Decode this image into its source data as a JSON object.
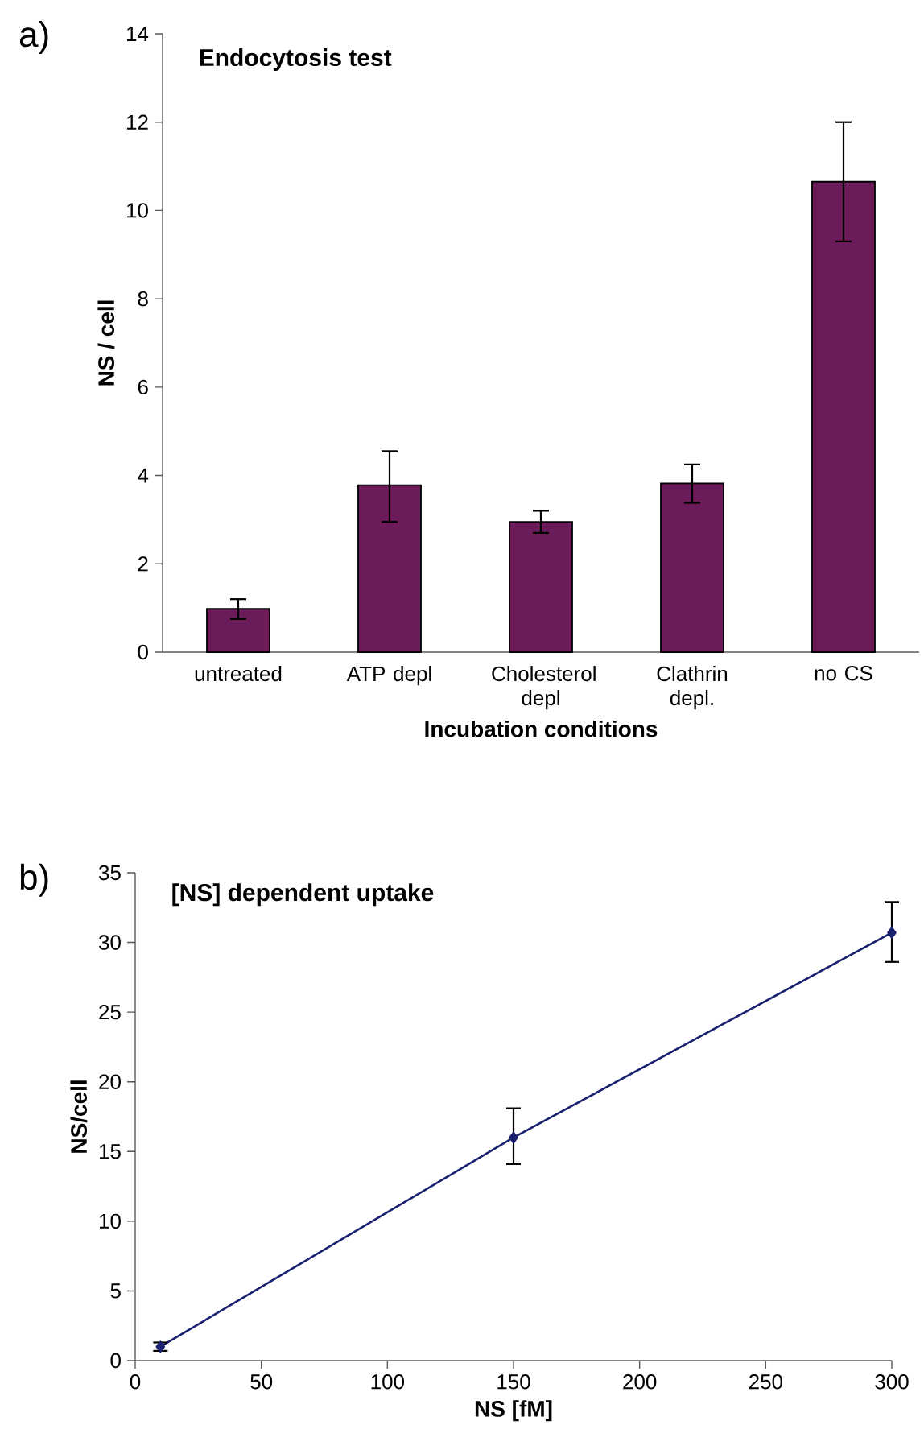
{
  "chart_data": [
    {
      "type": "bar",
      "title": "Endocytosis test",
      "xlabel": "Incubation conditions",
      "ylabel": "NS / cell",
      "categories": [
        "untreated",
        "ATP depl",
        "Cholesterol depl",
        "Clathrin depl.",
        "no CS"
      ],
      "values": [
        0.98,
        3.78,
        2.95,
        3.82,
        10.65
      ],
      "errors": [
        [
          0.75,
          1.2
        ],
        [
          2.95,
          4.55
        ],
        [
          2.7,
          3.2
        ],
        [
          3.38,
          4.25
        ],
        [
          9.3,
          12.0
        ]
      ],
      "color": "#6b1a5a",
      "ylim": [
        0,
        14
      ],
      "yticks": [
        0,
        2,
        4,
        6,
        8,
        10,
        12,
        14
      ],
      "grid": false,
      "annotations": [
        "a)"
      ]
    },
    {
      "type": "line",
      "title": "[NS] dependent uptake",
      "xlabel": "NS [fM]",
      "ylabel": "NS/cell",
      "x": [
        10,
        150,
        300
      ],
      "values": [
        1.0,
        16.0,
        30.7
      ],
      "errors": [
        [
          0.7,
          1.3
        ],
        [
          14.1,
          18.1
        ],
        [
          28.6,
          32.9
        ]
      ],
      "color": "#1a2070",
      "marker": "diamond",
      "line_style": "solid",
      "xlim": [
        0,
        300
      ],
      "xticks": [
        0,
        50,
        100,
        150,
        200,
        250,
        300
      ],
      "ylim": [
        0,
        35
      ],
      "yticks": [
        0,
        5,
        10,
        15,
        20,
        25,
        30,
        35
      ],
      "grid": false,
      "annotations": [
        "b)"
      ]
    }
  ]
}
